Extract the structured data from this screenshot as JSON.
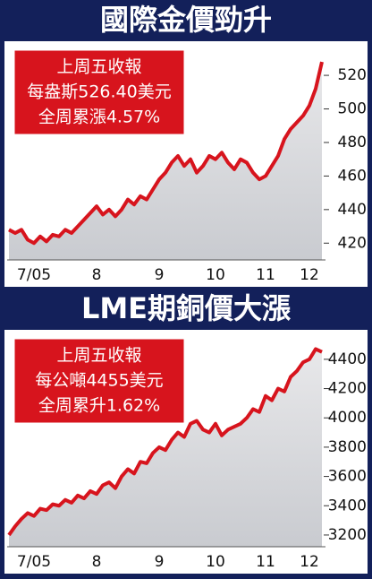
{
  "chart_data": [
    {
      "type": "line",
      "title": "國際金價勁升",
      "annotations": [
        "上周五收報",
        "每盎斯526.40美元",
        "全周累漲4.57%"
      ],
      "categories": [
        null,
        null,
        null,
        null,
        "7/05",
        null,
        null,
        null,
        null,
        null,
        null,
        null,
        null,
        null,
        "8",
        null,
        null,
        null,
        null,
        null,
        null,
        null,
        null,
        null,
        "9",
        null,
        null,
        null,
        null,
        null,
        null,
        null,
        null,
        "10",
        null,
        null,
        null,
        null,
        null,
        null,
        null,
        "11",
        null,
        null,
        null,
        null,
        null,
        null,
        "12",
        null,
        null
      ],
      "values": [
        428,
        426,
        428,
        422,
        420,
        424,
        421,
        425,
        424,
        428,
        426,
        430,
        434,
        438,
        442,
        437,
        440,
        436,
        440,
        446,
        443,
        448,
        446,
        452,
        458,
        462,
        468,
        472,
        466,
        470,
        462,
        466,
        472,
        470,
        474,
        468,
        464,
        470,
        468,
        462,
        458,
        460,
        466,
        472,
        482,
        488,
        492,
        496,
        502,
        512,
        528
      ],
      "color": "#d7141d",
      "area": true,
      "ylim": [
        410,
        535
      ],
      "yticks": [
        420,
        440,
        460,
        480,
        500,
        520
      ]
    },
    {
      "type": "line",
      "title": "LME期銅價大漲",
      "annotations": [
        "上周五收報",
        "每公噸4455美元",
        "全周累升1.62%"
      ],
      "categories": [
        null,
        null,
        null,
        null,
        "7/05",
        null,
        null,
        null,
        null,
        null,
        null,
        null,
        null,
        null,
        "8",
        null,
        null,
        null,
        null,
        null,
        null,
        null,
        null,
        null,
        "9",
        null,
        null,
        null,
        null,
        null,
        null,
        null,
        null,
        "10",
        null,
        null,
        null,
        null,
        null,
        null,
        null,
        "11",
        null,
        null,
        null,
        null,
        null,
        null,
        "12",
        null,
        null
      ],
      "values": [
        3200,
        3260,
        3310,
        3350,
        3330,
        3380,
        3370,
        3410,
        3400,
        3440,
        3420,
        3470,
        3450,
        3500,
        3480,
        3540,
        3560,
        3520,
        3600,
        3650,
        3620,
        3700,
        3690,
        3760,
        3800,
        3780,
        3850,
        3900,
        3870,
        3960,
        3980,
        3920,
        3900,
        3960,
        3880,
        3920,
        3940,
        3960,
        4000,
        4060,
        4040,
        4150,
        4120,
        4200,
        4180,
        4280,
        4320,
        4380,
        4400,
        4470,
        4450
      ],
      "color": "#d7141d",
      "area": true,
      "ylim": [
        3120,
        4540
      ],
      "yticks": [
        3200,
        3400,
        3600,
        3800,
        4000,
        4200,
        4400
      ]
    }
  ]
}
